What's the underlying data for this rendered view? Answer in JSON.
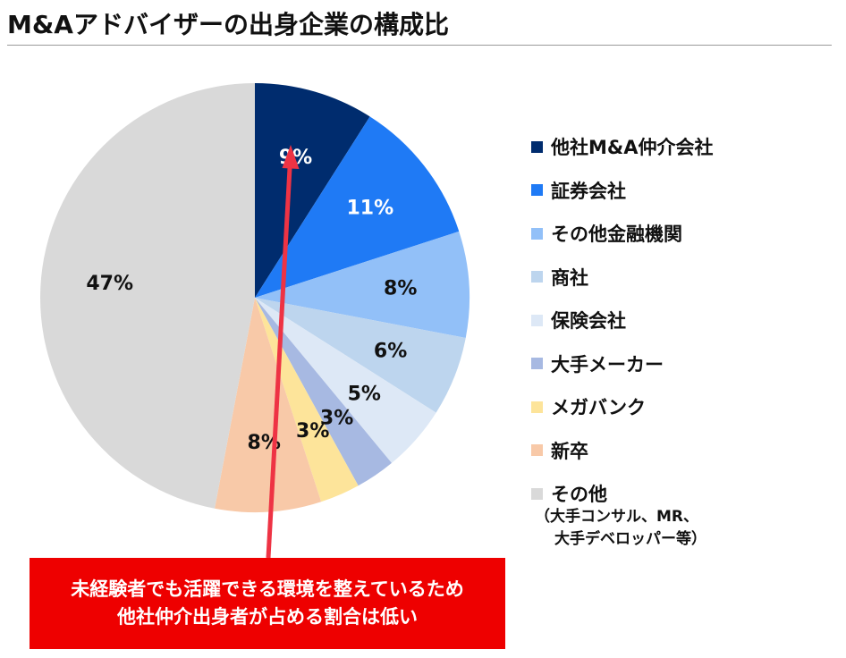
{
  "chart_data": {
    "type": "pie",
    "title": "M&Aアドバイザーの出身企業の構成比",
    "start_angle": "12 o'clock",
    "direction": "clockwise",
    "slices": [
      {
        "label": "他社M&A仲介会社",
        "value": 9,
        "value_label": "9%",
        "color": "#002c6e",
        "label_color": "#ffffff"
      },
      {
        "label": "証券会社",
        "value": 11,
        "value_label": "11%",
        "color": "#1f7af5",
        "label_color": "#ffffff"
      },
      {
        "label": "その他金融機関",
        "value": 8,
        "value_label": "8%",
        "color": "#92c0f8",
        "label_color": "#111111"
      },
      {
        "label": "商社",
        "value": 6,
        "value_label": "6%",
        "color": "#bdd5ee",
        "label_color": "#111111"
      },
      {
        "label": "保険会社",
        "value": 5,
        "value_label": "5%",
        "color": "#dde8f6",
        "label_color": "#111111"
      },
      {
        "label": "大手メーカー",
        "value": 3,
        "value_label": "3%",
        "color": "#a7b9e2",
        "label_color": "#111111"
      },
      {
        "label": "メガバンク",
        "value": 3,
        "value_label": "3%",
        "color": "#fde49a",
        "label_color": "#111111"
      },
      {
        "label": "新卒",
        "value": 8,
        "value_label": "8%",
        "color": "#f8c9a8",
        "label_color": "#111111"
      },
      {
        "label": "その他",
        "value": 47,
        "value_label": "47%",
        "color": "#d9d9d9",
        "label_color": "#111111"
      }
    ],
    "legend": {
      "position": "right",
      "note_lines": [
        "（大手コンサル、MR、",
        "大手デベロッパー等）"
      ]
    }
  },
  "callout": {
    "lines": [
      "未経験者でも活躍できる環境を整えているため",
      "他社仲介出身者が占める割合は低い"
    ],
    "background_color": "#ee0000",
    "text_color": "#ffffff",
    "arrow_color": "#ee3344",
    "points_to": "他社M&A仲介会社"
  }
}
